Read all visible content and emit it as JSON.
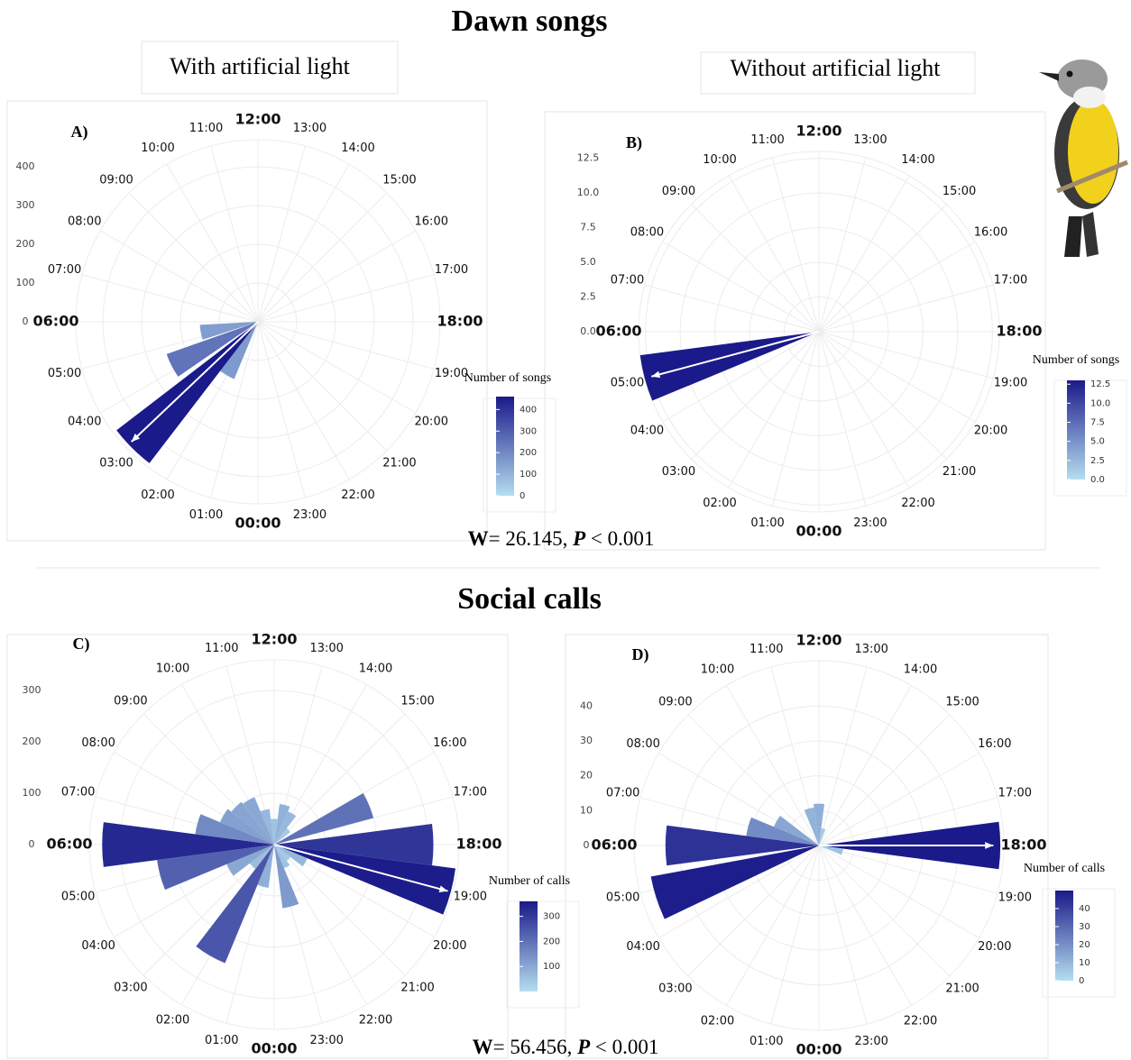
{
  "header": {
    "title_top": "Dawn songs",
    "title_bottom": "Social calls",
    "subtitle_left": "With artificial light",
    "subtitle_right": "Without artificial light",
    "stat_top": [
      "W",
      "= 26.145, ",
      "P",
      " < 0.001"
    ],
    "stat_bottom": [
      "W",
      "= 56.456, ",
      "P",
      " < 0.001"
    ]
  },
  "chart_data": [
    {
      "type": "polar_bar",
      "panel": "A)",
      "angle_labels": [
        "00:00",
        "01:00",
        "02:00",
        "03:00",
        "04:00",
        "05:00",
        "06:00",
        "07:00",
        "08:00",
        "09:00",
        "10:00",
        "11:00",
        "12:00",
        "13:00",
        "14:00",
        "15:00",
        "16:00",
        "17:00",
        "18:00",
        "19:00",
        "20:00",
        "21:00",
        "22:00",
        "23:00"
      ],
      "x": [
        2,
        3,
        4.2,
        5.3
      ],
      "values": [
        160,
        460,
        250,
        150
      ],
      "ylim": [
        0,
        470
      ],
      "yticks": [
        0,
        100,
        200,
        300,
        400
      ],
      "mean_vector": {
        "hour": 3.1,
        "length": 450
      },
      "arrow_color": "#ffffff",
      "colors": [
        "#b5def0",
        "#1a1a8a"
      ],
      "legend_title": "Number of songs",
      "colorbar_lim": [
        0,
        460
      ],
      "colorbar_ticks": [
        0,
        100,
        200,
        300,
        400
      ]
    },
    {
      "type": "polar_bar",
      "panel": "B)",
      "angle_labels": [
        "00:00",
        "01:00",
        "02:00",
        "03:00",
        "04:00",
        "05:00",
        "06:00",
        "07:00",
        "08:00",
        "09:00",
        "10:00",
        "11:00",
        "12:00",
        "13:00",
        "14:00",
        "15:00",
        "16:00",
        "17:00",
        "18:00",
        "19:00",
        "20:00",
        "21:00",
        "22:00",
        "23:00"
      ],
      "x": [
        5
      ],
      "values": [
        13
      ],
      "ylim": [
        0,
        13
      ],
      "yticks": [
        {
          "value": 0,
          "label": "0.0"
        },
        {
          "value": 2.5,
          "label": "2.5"
        },
        {
          "value": 5,
          "label": "5.0"
        },
        {
          "value": 7.5,
          "label": "7.5"
        },
        {
          "value": 10,
          "label": "10.0"
        },
        {
          "value": 12.5,
          "label": "12.5"
        }
      ],
      "mean_vector": {
        "hour": 5,
        "length": 12.5
      },
      "arrow_color": "#ffffff",
      "colors": [
        "#b5def0",
        "#1a1a8a"
      ],
      "legend_title": "Number of songs",
      "colorbar_lim": [
        0,
        13
      ],
      "colorbar_ticks": [
        {
          "value": 0,
          "label": "0.0"
        },
        {
          "value": 2.5,
          "label": "2.5"
        },
        {
          "value": 5,
          "label": "5.0"
        },
        {
          "value": 7.5,
          "label": "7.5"
        },
        {
          "value": 10,
          "label": "10.0"
        },
        {
          "value": 12.5,
          "label": "12.5"
        }
      ]
    },
    {
      "type": "polar_bar",
      "panel": "C)",
      "angle_labels": [
        "00:00",
        "01:00",
        "02:00",
        "03:00",
        "04:00",
        "05:00",
        "06:00",
        "07:00",
        "08:00",
        "09:00",
        "10:00",
        "11:00",
        "12:00",
        "13:00",
        "14:00",
        "15:00",
        "16:00",
        "17:00",
        "18:00",
        "19:00",
        "20:00",
        "21:00",
        "22:00",
        "23:00"
      ],
      "x": [
        1,
        2,
        3,
        4,
        5,
        6,
        7,
        8,
        9,
        10,
        11,
        12,
        13,
        14,
        15,
        16.5,
        18,
        19,
        20,
        21,
        22,
        23
      ],
      "values": [
        85,
        250,
        60,
        100,
        230,
        335,
        155,
        114,
        105,
        100,
        70,
        50,
        80,
        70,
        40,
        200,
        310,
        356,
        70,
        40,
        50,
        125
      ],
      "ylim": [
        0,
        360
      ],
      "yticks": [
        0,
        100,
        200,
        300
      ],
      "mean_vector": {
        "hour": 19,
        "length": 350
      },
      "arrow_color": "#ffffff",
      "colors": [
        "#b5def0",
        "#1a1a8a"
      ],
      "legend_title": "Number of calls",
      "colorbar_lim": [
        0,
        360
      ],
      "colorbar_ticks": [
        100,
        200,
        300
      ]
    },
    {
      "type": "polar_bar",
      "panel": "D)",
      "angle_labels": [
        "00:00",
        "01:00",
        "02:00",
        "03:00",
        "04:00",
        "05:00",
        "06:00",
        "07:00",
        "08:00",
        "09:00",
        "10:00",
        "11:00",
        "12:00",
        "13:00",
        "14:00",
        "15:00",
        "16:00",
        "17:00",
        "18:00",
        "19:00",
        "20:00",
        "21:00",
        "22:00",
        "23:00"
      ],
      "x": [
        4.8,
        6,
        7,
        8,
        11,
        12,
        13,
        18,
        19
      ],
      "values": [
        49,
        44,
        21,
        14,
        11,
        12,
        5,
        52,
        7
      ],
      "ylim": [
        0,
        53
      ],
      "yticks": [
        0,
        10,
        20,
        30,
        40
      ],
      "mean_vector": {
        "hour": 18,
        "length": 50
      },
      "arrow_color": "#ffffff",
      "colors": [
        "#b5def0",
        "#1a1a8a"
      ],
      "legend_title": "Number of calls",
      "colorbar_lim": [
        0,
        50
      ],
      "colorbar_ticks": [
        0,
        10,
        20,
        30,
        40
      ]
    }
  ]
}
